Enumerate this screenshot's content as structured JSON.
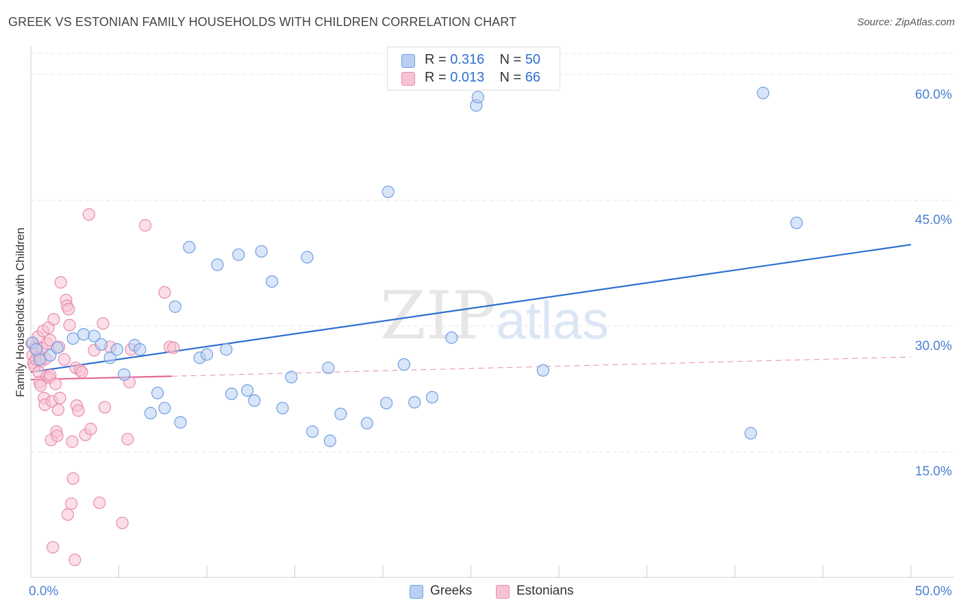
{
  "title": "GREEK VS ESTONIAN FAMILY HOUSEHOLDS WITH CHILDREN CORRELATION CHART",
  "source": "Source: ZipAtlas.com",
  "watermark": {
    "zip": "ZIP",
    "atlas": "atlas"
  },
  "legend": {
    "r_label": "R =",
    "n_label": "N =",
    "greeks": {
      "r": "0.316",
      "n": "50"
    },
    "estonians": {
      "r": "0.013",
      "n": "66"
    }
  },
  "colors": {
    "greeks_fill": "#b9d0f2",
    "greeks_stroke": "#6f9ee0",
    "greeks_line": "#2e6fd0",
    "estonians_fill": "#f7c3d3",
    "estonians_stroke": "#e98aab",
    "estonians_line": "#e06a95",
    "grid": "#e3e3e3",
    "axis_label": "#4a7fd1"
  },
  "chart_data": {
    "type": "scatter",
    "title": "GREEK VS ESTONIAN FAMILY HOUSEHOLDS WITH CHILDREN CORRELATION CHART",
    "xlabel": "",
    "ylabel": "Family Households with Children",
    "xlim": [
      0,
      50
    ],
    "ylim": [
      0,
      63
    ],
    "x_tick_labels": [
      "0.0%",
      "50.0%"
    ],
    "y_ticks": [
      15,
      30,
      45,
      60
    ],
    "y_tick_labels": [
      "15.0%",
      "30.0%",
      "45.0%",
      "60.0%"
    ],
    "legend_bottom": [
      "Greeks",
      "Estonians"
    ],
    "series": [
      {
        "name": "Greeks",
        "r": 0.316,
        "n": 50,
        "trend": {
          "x": [
            0,
            50
          ],
          "y": [
            24.5,
            39.7
          ]
        },
        "points": [
          [
            0.1,
            28.0
          ],
          [
            0.3,
            27.2
          ],
          [
            0.5,
            26.0
          ],
          [
            1.1,
            26.5
          ],
          [
            1.5,
            27.4
          ],
          [
            2.4,
            28.5
          ],
          [
            3.0,
            29.0
          ],
          [
            3.6,
            28.8
          ],
          [
            4.0,
            27.8
          ],
          [
            4.5,
            26.2
          ],
          [
            4.9,
            27.2
          ],
          [
            5.3,
            24.2
          ],
          [
            5.9,
            27.7
          ],
          [
            6.2,
            27.2
          ],
          [
            6.8,
            19.6
          ],
          [
            7.2,
            22.0
          ],
          [
            7.6,
            20.2
          ],
          [
            8.2,
            32.3
          ],
          [
            8.5,
            18.5
          ],
          [
            9.0,
            39.4
          ],
          [
            9.6,
            26.2
          ],
          [
            10.0,
            26.6
          ],
          [
            10.6,
            37.3
          ],
          [
            11.1,
            27.2
          ],
          [
            11.4,
            21.9
          ],
          [
            11.8,
            38.5
          ],
          [
            12.3,
            22.3
          ],
          [
            12.7,
            21.1
          ],
          [
            13.1,
            38.9
          ],
          [
            13.7,
            35.3
          ],
          [
            14.3,
            20.2
          ],
          [
            14.8,
            23.9
          ],
          [
            15.7,
            38.2
          ],
          [
            16.0,
            17.4
          ],
          [
            16.9,
            25.0
          ],
          [
            17.0,
            16.3
          ],
          [
            17.6,
            19.5
          ],
          [
            19.1,
            18.4
          ],
          [
            20.2,
            20.8
          ],
          [
            20.3,
            46.0
          ],
          [
            21.2,
            25.4
          ],
          [
            21.8,
            20.9
          ],
          [
            22.8,
            21.5
          ],
          [
            23.9,
            28.6
          ],
          [
            25.3,
            56.3
          ],
          [
            25.4,
            57.3
          ],
          [
            29.1,
            24.7
          ],
          [
            40.9,
            17.2
          ],
          [
            41.6,
            57.8
          ],
          [
            43.5,
            42.3
          ]
        ]
      },
      {
        "name": "Estonians",
        "r": 0.013,
        "n": 66,
        "trend_solid": {
          "x": [
            0,
            8
          ],
          "y": [
            23.6,
            24.0
          ]
        },
        "trend_dashed": {
          "x": [
            8,
            50
          ],
          "y": [
            24.0,
            26.3
          ]
        },
        "points": [
          [
            0.05,
            27.9
          ],
          [
            0.1,
            26.5
          ],
          [
            0.15,
            25.6
          ],
          [
            0.2,
            25.2
          ],
          [
            0.25,
            27.4
          ],
          [
            0.3,
            26.0
          ],
          [
            0.35,
            27.1
          ],
          [
            0.4,
            28.7
          ],
          [
            0.45,
            24.5
          ],
          [
            0.5,
            23.3
          ],
          [
            0.5,
            26.4
          ],
          [
            0.55,
            22.9
          ],
          [
            0.6,
            25.8
          ],
          [
            0.65,
            27.3
          ],
          [
            0.7,
            29.4
          ],
          [
            0.75,
            21.4
          ],
          [
            0.8,
            20.6
          ],
          [
            0.85,
            26.1
          ],
          [
            0.9,
            24.0
          ],
          [
            0.95,
            27.9
          ],
          [
            1.0,
            29.8
          ],
          [
            1.05,
            23.8
          ],
          [
            1.1,
            28.3
          ],
          [
            1.1,
            24.1
          ],
          [
            1.15,
            16.4
          ],
          [
            1.2,
            21.0
          ],
          [
            1.25,
            3.6
          ],
          [
            1.3,
            30.8
          ],
          [
            1.4,
            23.1
          ],
          [
            1.45,
            17.4
          ],
          [
            1.5,
            16.9
          ],
          [
            1.55,
            20.0
          ],
          [
            1.6,
            27.5
          ],
          [
            1.65,
            21.4
          ],
          [
            1.7,
            35.2
          ],
          [
            1.9,
            26.0
          ],
          [
            2.0,
            33.1
          ],
          [
            2.05,
            32.4
          ],
          [
            2.1,
            7.5
          ],
          [
            2.15,
            32.0
          ],
          [
            2.2,
            30.1
          ],
          [
            2.3,
            8.8
          ],
          [
            2.35,
            16.2
          ],
          [
            2.4,
            11.8
          ],
          [
            2.5,
            2.1
          ],
          [
            2.55,
            25.0
          ],
          [
            2.6,
            20.5
          ],
          [
            2.7,
            19.9
          ],
          [
            2.8,
            24.7
          ],
          [
            2.9,
            24.5
          ],
          [
            3.1,
            17.0
          ],
          [
            3.3,
            43.3
          ],
          [
            3.4,
            17.7
          ],
          [
            3.6,
            27.1
          ],
          [
            3.9,
            8.9
          ],
          [
            4.1,
            30.3
          ],
          [
            4.2,
            20.3
          ],
          [
            4.5,
            27.5
          ],
          [
            5.2,
            6.5
          ],
          [
            5.5,
            16.5
          ],
          [
            5.6,
            23.3
          ],
          [
            5.7,
            27.2
          ],
          [
            6.5,
            42.0
          ],
          [
            7.6,
            34.0
          ],
          [
            7.9,
            27.5
          ],
          [
            8.1,
            27.4
          ]
        ]
      }
    ]
  }
}
